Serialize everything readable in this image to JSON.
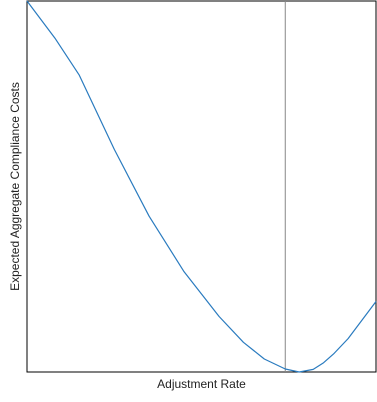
{
  "chart_data": {
    "type": "line",
    "title": "",
    "xlabel": "Adjustment Rate",
    "ylabel": "Expected Aggregate Compliance Costs",
    "xlim": [
      0,
      1
    ],
    "ylim": [
      0,
      1
    ],
    "grid": false,
    "ticks": false,
    "legend": "none",
    "series": [
      {
        "color": "#2a7bbf",
        "x": [
          0.0,
          0.08,
          0.15,
          0.25,
          0.35,
          0.45,
          0.55,
          0.62,
          0.68,
          0.74,
          0.78,
          0.82,
          0.85,
          0.88,
          0.92,
          0.96,
          1.0
        ],
        "y": [
          1.0,
          0.9,
          0.8,
          0.6,
          0.42,
          0.27,
          0.15,
          0.08,
          0.035,
          0.008,
          0.0,
          0.007,
          0.025,
          0.05,
          0.09,
          0.14,
          0.19
        ]
      }
    ],
    "vline": {
      "x": 0.74,
      "color": "#888888"
    }
  }
}
